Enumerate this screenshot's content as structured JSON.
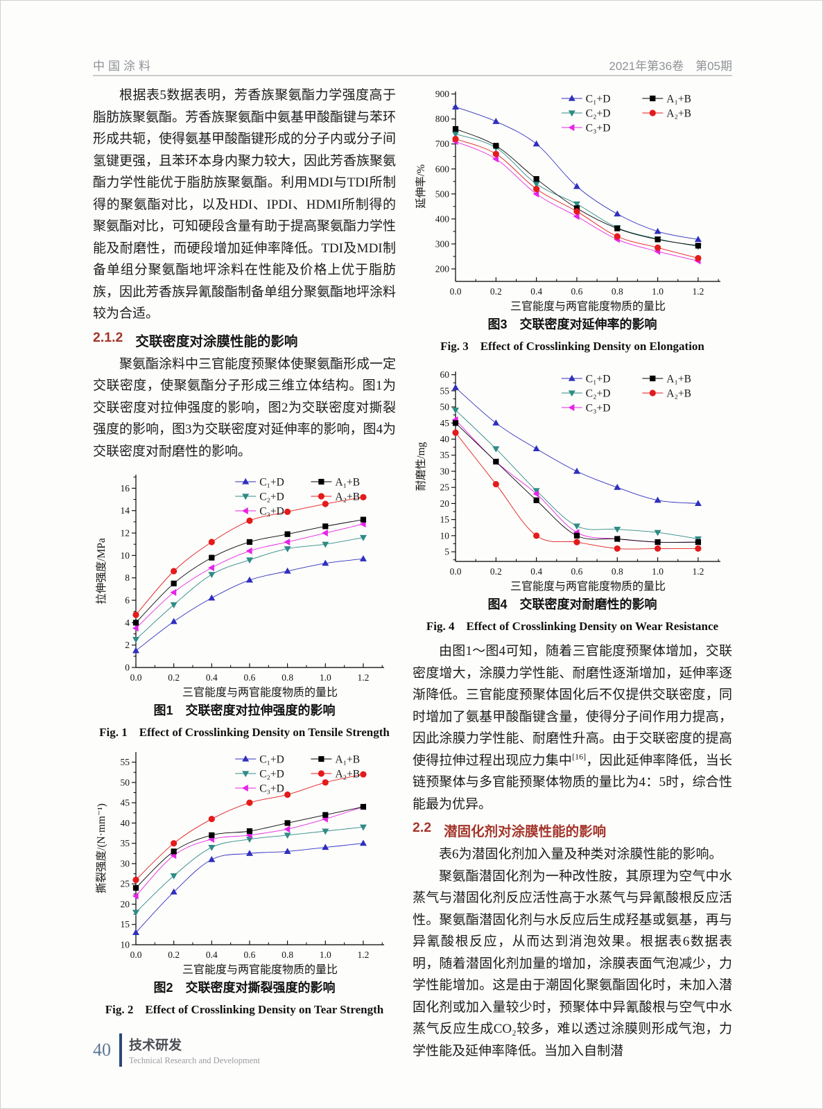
{
  "header": {
    "journal": "中国涂料",
    "issue": "2021年第36卷　第05期"
  },
  "left_column": {
    "para1": "根据表5数据表明，芳香族聚氨酯力学强度高于脂肪族聚氨酯。芳香族聚氨酯中氨基甲酸酯键与苯环形成共轭，使得氨基甲酸酯键形成的分子内或分子间氢键更强，且苯环本身内聚力较大，因此芳香族聚氨酯力学性能优于脂肪族聚氨酯。利用MDI与TDI所制得的聚氨酯对比，以及HDI、IPDI、HDMI所制得的聚氨酯对比，可知硬段含量有助于提高聚氨酯力学性能及耐磨性，而硬段增加延伸率降低。TDI及MDI制备单组分聚氨酯地坪涂料在性能及价格上优于脂肪族，因此芳香族异氰酸酯制备单组分聚氨酯地坪涂料较为合适。",
    "section_212_number": "2.1.2",
    "section_212_title": "交联密度对涂膜性能的影响",
    "para2": "聚氨酯涂料中三官能度预聚体使聚氨酯形成一定交联密度，使聚氨酯分子形成三维立体结构。图1为交联密度对拉伸强度的影响，图2为交联密度对撕裂强度的影响，图3为交联密度对延伸率的影响，图4为交联密度对耐磨性的影响。"
  },
  "right_column": {
    "para1_a": "由图1～图4可知，随着三官能度预聚体增加，交联密度增大，涂膜力学性能、耐磨性逐渐增加，延伸率逐渐降低。三官能度预聚体固化后不仅提供交联密度，同时增加了氨基甲酸酯键含量，使得分子间作用力提高，因此涂膜力学性能、耐磨性升高。由于交联密度的提高使得拉伸过程出现应力集中",
    "para1_sup": "[16]",
    "para1_b": "，因此延伸率降低，当长链预聚体与多官能预聚体物质的量比为4：5时，综合性能最为优异。",
    "section_22_number": "2.2",
    "section_22_title": "潜固化剂对涂膜性能的影响",
    "para2": "表6为潜固化剂加入量及种类对涂膜性能的影响。",
    "para3": "聚氨酯潜固化剂为一种改性胺，其原理为空气中水蒸气与潜固化剂反应活性高于水蒸气与异氰酸根反应活性。聚氨酯潜固化剂与水反应后生成羟基或氨基，再与异氰酸根反应，从而达到消泡效果。根据表6数据表明，随着潜固化剂加量的增加，涂膜表面气泡减少，力学性能增加。这是由于潮固化聚氨酯固化时，未加入潜固化剂或加入量较少时，预聚体中异氰酸根与空气中水蒸气反应生成CO₂较多，难以透过涂膜则形成气泡，力学性能及延伸率降低。当加入自制潜"
  },
  "footer": {
    "page_number": "40",
    "section_cn": "技术研发",
    "section_en": "Technical Research and Development"
  },
  "chart_data": [
    {
      "type": "line",
      "title_cn": "图1　交联密度对拉伸强度的影响",
      "title_en": "Fig. 1　Effect of Crosslinking Density on Tensile Strength",
      "xlabel": "三官能度与两官能度物质的量比",
      "ylabel": "拉伸强度/MPa",
      "grid": false,
      "legend_position": "top-right-inside",
      "xlim": [
        0,
        1.31
      ],
      "ylim": [
        0,
        17.2
      ],
      "xticks": [
        0.0,
        0.2,
        0.4,
        0.6,
        0.8,
        1.0,
        1.2
      ],
      "xtick_labels": [
        "0.0",
        "0.2",
        "0.4",
        "0.6",
        "0.8",
        "1.0",
        "1.2"
      ],
      "yticks": [
        0,
        2,
        4,
        6,
        8,
        10,
        12,
        14,
        16
      ],
      "ytick_labels": [
        "0",
        "2",
        "4",
        "6",
        "8",
        "10",
        "12",
        "14",
        "16"
      ],
      "x": [
        0.0,
        0.2,
        0.4,
        0.6,
        0.8,
        1.0,
        1.2
      ],
      "series": [
        {
          "name": "C₁+D",
          "color": "#2f2fbe",
          "marker": "triangle-up",
          "values": [
            1.5,
            4.1,
            6.2,
            7.8,
            8.6,
            9.3,
            9.7
          ]
        },
        {
          "name": "C₂+D",
          "color": "#2e8b85",
          "marker": "triangle-down",
          "values": [
            2.5,
            5.6,
            8.3,
            9.6,
            10.6,
            11.0,
            11.6
          ]
        },
        {
          "name": "C₃+D",
          "color": "#e624e6",
          "marker": "triangle-left",
          "values": [
            3.5,
            6.7,
            8.9,
            10.4,
            11.2,
            12.0,
            12.8
          ]
        },
        {
          "name": "A₁+B",
          "color": "#000000",
          "marker": "square",
          "values": [
            4.0,
            7.5,
            9.8,
            11.2,
            11.9,
            12.6,
            13.2
          ]
        },
        {
          "name": "A₂+B",
          "color": "#e31b1b",
          "marker": "circle",
          "values": [
            4.7,
            8.6,
            11.2,
            13.1,
            13.9,
            14.6,
            15.2
          ]
        }
      ]
    },
    {
      "type": "line",
      "title_cn": "图2　交联密度对撕裂强度的影响",
      "title_en": "Fig. 2　Effect of Crosslinking Density on Tear Strength",
      "xlabel": "三官能度与两官能度物质的量比",
      "ylabel": "撕裂强度/(N·mm⁻¹)",
      "grid": false,
      "legend_position": "top-right-inside",
      "xlim": [
        0,
        1.31
      ],
      "ylim": [
        10,
        57.5
      ],
      "xticks": [
        0.0,
        0.2,
        0.4,
        0.6,
        0.8,
        1.0,
        1.2
      ],
      "xtick_labels": [
        "0.0",
        "0.2",
        "0.4",
        "0.6",
        "0.8",
        "1.0",
        "1.2"
      ],
      "yticks": [
        10,
        15,
        20,
        25,
        30,
        35,
        40,
        45,
        50,
        55
      ],
      "ytick_labels": [
        "10",
        "15",
        "20",
        "25",
        "30",
        "35",
        "40",
        "45",
        "50",
        "55"
      ],
      "x": [
        0.0,
        0.2,
        0.4,
        0.6,
        0.8,
        1.0,
        1.2
      ],
      "series": [
        {
          "name": "C₁+D",
          "color": "#2f2fbe",
          "marker": "triangle-up",
          "values": [
            13,
            23,
            31,
            32.5,
            33,
            34,
            35
          ]
        },
        {
          "name": "C₂+D",
          "color": "#2e8b85",
          "marker": "triangle-down",
          "values": [
            18,
            27,
            34,
            36,
            37,
            38,
            39
          ]
        },
        {
          "name": "C₃+D",
          "color": "#e624e6",
          "marker": "triangle-left",
          "values": [
            22,
            32,
            36,
            37,
            38.5,
            41,
            44
          ]
        },
        {
          "name": "A₁+B",
          "color": "#000000",
          "marker": "square",
          "values": [
            24,
            33,
            37,
            38,
            40,
            42,
            44
          ]
        },
        {
          "name": "A₂+B",
          "color": "#e31b1b",
          "marker": "circle",
          "values": [
            26,
            35,
            41,
            45,
            47,
            50,
            52
          ]
        }
      ]
    },
    {
      "type": "line",
      "title_cn": "图3　交联密度对延伸率的影响",
      "title_en": "Fig. 3　Effect of Crosslinking Density on Elongation",
      "xlabel": "三官能度与两官能度物质的量比",
      "ylabel": "延伸率/%",
      "grid": false,
      "legend_position": "top-right-inside",
      "xlim": [
        0,
        1.31
      ],
      "ylim": [
        150,
        910
      ],
      "xticks": [
        0.0,
        0.2,
        0.4,
        0.6,
        0.8,
        1.0,
        1.2
      ],
      "xtick_labels": [
        "0.0",
        "0.2",
        "0.4",
        "0.6",
        "0.8",
        "1.0",
        "1.2"
      ],
      "yticks": [
        200,
        300,
        400,
        500,
        600,
        700,
        800,
        900
      ],
      "ytick_labels": [
        "200",
        "300",
        "400",
        "500",
        "600",
        "700",
        "800",
        "900"
      ],
      "x": [
        0.0,
        0.2,
        0.4,
        0.6,
        0.8,
        1.0,
        1.2
      ],
      "series": [
        {
          "name": "C₁+D",
          "color": "#2f2fbe",
          "marker": "triangle-up",
          "values": [
            848,
            790,
            700,
            530,
            420,
            350,
            318
          ]
        },
        {
          "name": "C₂+D",
          "color": "#2e8b85",
          "marker": "triangle-down",
          "values": [
            740,
            685,
            540,
            460,
            365,
            320,
            290
          ]
        },
        {
          "name": "C₃+D",
          "color": "#e624e6",
          "marker": "triangle-left",
          "values": [
            710,
            640,
            500,
            410,
            318,
            270,
            232
          ]
        },
        {
          "name": "A₁+B",
          "color": "#000000",
          "marker": "square",
          "values": [
            760,
            693,
            560,
            443,
            362,
            318,
            293
          ]
        },
        {
          "name": "A₂+B",
          "color": "#e31b1b",
          "marker": "circle",
          "values": [
            720,
            660,
            520,
            430,
            330,
            285,
            243
          ]
        }
      ]
    },
    {
      "type": "line",
      "title_cn": "图4　交联密度对耐磨性的影响",
      "title_en": "Fig. 4　Effect of Crosslinking Density on Wear Resistance",
      "xlabel": "三官能度与两官能度物质的量比",
      "ylabel": "耐磨性/mg",
      "grid": false,
      "legend_position": "top-right-inside",
      "xlim": [
        0,
        1.31
      ],
      "ylim": [
        2,
        61
      ],
      "xticks": [
        0.0,
        0.2,
        0.4,
        0.6,
        0.8,
        1.0,
        1.2
      ],
      "xtick_labels": [
        "0.0",
        "0.2",
        "0.4",
        "0.6",
        "0.8",
        "1.0",
        "1.2"
      ],
      "yticks": [
        5,
        10,
        15,
        20,
        25,
        30,
        35,
        40,
        45,
        50,
        55,
        60
      ],
      "ytick_labels": [
        "5",
        "10",
        "15",
        "20",
        "25",
        "30",
        "35",
        "40",
        "45",
        "50",
        "55",
        "60"
      ],
      "x": [
        0.0,
        0.2,
        0.4,
        0.6,
        0.8,
        1.0,
        1.2
      ],
      "series": [
        {
          "name": "C₁+D",
          "color": "#2f2fbe",
          "marker": "triangle-up",
          "values": [
            56,
            45,
            37,
            30,
            25,
            21,
            20
          ]
        },
        {
          "name": "C₂+D",
          "color": "#2e8b85",
          "marker": "triangle-down",
          "values": [
            49,
            37,
            24,
            13,
            12,
            11,
            9
          ]
        },
        {
          "name": "C₃+D",
          "color": "#e624e6",
          "marker": "triangle-left",
          "values": [
            46,
            33,
            23,
            11,
            9,
            8,
            8
          ]
        },
        {
          "name": "A₁+B",
          "color": "#000000",
          "marker": "square",
          "values": [
            45,
            33,
            21,
            10,
            9,
            8,
            8
          ]
        },
        {
          "name": "A₂+B",
          "color": "#e31b1b",
          "marker": "circle",
          "values": [
            42,
            26,
            10,
            8,
            6,
            6,
            6
          ]
        }
      ]
    }
  ]
}
